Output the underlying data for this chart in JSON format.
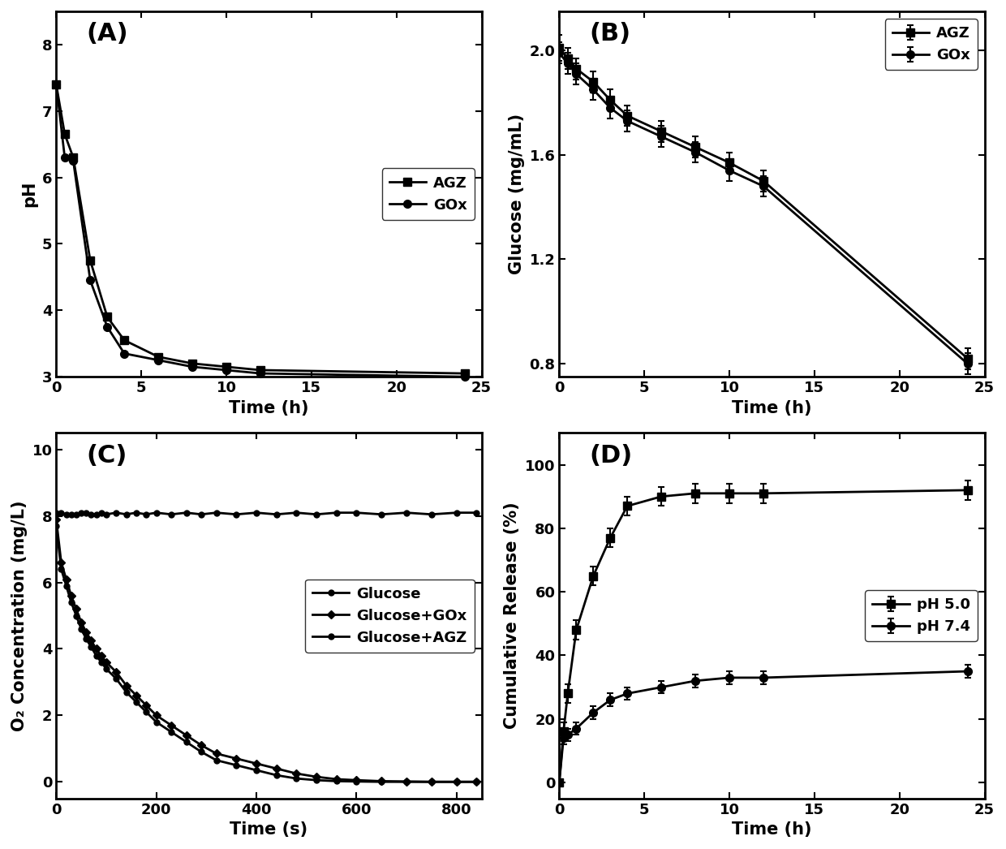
{
  "A": {
    "title": "(A)",
    "xlabel": "Time (h)",
    "ylabel": "pH",
    "xlim": [
      0,
      25
    ],
    "ylim": [
      3.0,
      8.5
    ],
    "yticks": [
      3,
      4,
      5,
      6,
      7,
      8
    ],
    "xticks": [
      0,
      5,
      10,
      15,
      20,
      25
    ],
    "AGZ_x": [
      0,
      0.5,
      1,
      2,
      3,
      4,
      6,
      8,
      10,
      12,
      24
    ],
    "AGZ_y": [
      7.4,
      6.65,
      6.3,
      4.75,
      3.9,
      3.55,
      3.3,
      3.2,
      3.15,
      3.1,
      3.05
    ],
    "GOx_x": [
      0,
      0.5,
      1,
      2,
      3,
      4,
      6,
      8,
      10,
      12,
      24
    ],
    "GOx_y": [
      7.4,
      6.3,
      6.25,
      4.45,
      3.75,
      3.35,
      3.25,
      3.15,
      3.1,
      3.05,
      3.0
    ]
  },
  "B": {
    "title": "(B)",
    "xlabel": "Time (h)",
    "ylabel": "Glucose (mg/mL)",
    "xlim": [
      0,
      25
    ],
    "ylim": [
      0.75,
      2.15
    ],
    "yticks": [
      0.8,
      1.2,
      1.6,
      2.0
    ],
    "xticks": [
      0,
      5,
      10,
      15,
      20,
      25
    ],
    "AGZ_x": [
      0,
      0.5,
      1,
      2,
      3,
      4,
      6,
      8,
      10,
      12,
      24
    ],
    "AGZ_y": [
      2.01,
      1.97,
      1.93,
      1.88,
      1.81,
      1.75,
      1.69,
      1.63,
      1.57,
      1.5,
      0.82
    ],
    "AGZ_err": [
      0.05,
      0.04,
      0.04,
      0.04,
      0.04,
      0.04,
      0.04,
      0.04,
      0.04,
      0.04,
      0.04
    ],
    "GOx_x": [
      0,
      0.5,
      1,
      2,
      3,
      4,
      6,
      8,
      10,
      12,
      24
    ],
    "GOx_y": [
      1.99,
      1.95,
      1.91,
      1.85,
      1.78,
      1.73,
      1.67,
      1.61,
      1.54,
      1.48,
      0.8
    ],
    "GOx_err": [
      0.04,
      0.04,
      0.04,
      0.04,
      0.04,
      0.04,
      0.04,
      0.04,
      0.04,
      0.04,
      0.04
    ]
  },
  "C": {
    "title": "(C)",
    "xlabel": "Time (s)",
    "ylabel": "O₂ Concentration (mg/L)",
    "xlim": [
      0,
      850
    ],
    "ylim": [
      -0.5,
      10.5
    ],
    "yticks": [
      0,
      2,
      4,
      6,
      8,
      10
    ],
    "xticks": [
      0,
      200,
      400,
      600,
      800
    ],
    "Glucose_x": [
      0,
      10,
      20,
      30,
      40,
      50,
      60,
      70,
      80,
      90,
      100,
      120,
      140,
      160,
      180,
      200,
      230,
      260,
      290,
      320,
      360,
      400,
      440,
      480,
      520,
      560,
      600,
      650,
      700,
      750,
      800,
      840
    ],
    "Glucose_y": [
      8.1,
      8.1,
      8.05,
      8.05,
      8.05,
      8.1,
      8.1,
      8.05,
      8.05,
      8.1,
      8.05,
      8.1,
      8.05,
      8.1,
      8.05,
      8.1,
      8.05,
      8.1,
      8.05,
      8.1,
      8.05,
      8.1,
      8.05,
      8.1,
      8.05,
      8.1,
      8.1,
      8.05,
      8.1,
      8.05,
      8.1,
      8.1
    ],
    "GOx_x": [
      0,
      10,
      20,
      30,
      40,
      50,
      60,
      70,
      80,
      90,
      100,
      120,
      140,
      160,
      180,
      200,
      230,
      260,
      290,
      320,
      360,
      400,
      440,
      480,
      520,
      560,
      600,
      650,
      700,
      750,
      800,
      840
    ],
    "GOx_y": [
      7.9,
      6.6,
      6.1,
      5.6,
      5.2,
      4.8,
      4.5,
      4.25,
      4.0,
      3.8,
      3.6,
      3.3,
      2.9,
      2.6,
      2.3,
      2.0,
      1.7,
      1.4,
      1.1,
      0.85,
      0.7,
      0.55,
      0.4,
      0.25,
      0.15,
      0.08,
      0.05,
      0.02,
      0.01,
      0.0,
      0.0,
      0.0
    ],
    "AGZ_x": [
      0,
      10,
      20,
      30,
      40,
      50,
      60,
      70,
      80,
      90,
      100,
      120,
      140,
      160,
      180,
      200,
      230,
      260,
      290,
      320,
      360,
      400,
      440,
      480,
      520,
      560,
      600,
      650,
      700,
      750,
      800,
      840
    ],
    "AGZ_y": [
      7.7,
      6.4,
      5.9,
      5.4,
      5.0,
      4.6,
      4.3,
      4.05,
      3.8,
      3.6,
      3.4,
      3.1,
      2.7,
      2.4,
      2.1,
      1.8,
      1.5,
      1.2,
      0.9,
      0.65,
      0.5,
      0.35,
      0.2,
      0.1,
      0.05,
      0.02,
      0.01,
      0.0,
      0.0,
      0.0,
      0.0,
      0.0
    ]
  },
  "D": {
    "title": "(D)",
    "xlabel": "Time (h)",
    "ylabel": "Cumulative Release (%)",
    "xlim": [
      0,
      25
    ],
    "ylim": [
      -5,
      110
    ],
    "yticks": [
      0,
      20,
      40,
      60,
      80,
      100
    ],
    "xticks": [
      0,
      5,
      10,
      15,
      20,
      25
    ],
    "pH50_x": [
      0,
      0.25,
      0.5,
      1,
      2,
      3,
      4,
      6,
      8,
      10,
      12,
      24
    ],
    "pH50_y": [
      0,
      16,
      28,
      48,
      65,
      77,
      87,
      90,
      91,
      91,
      91,
      92
    ],
    "pH50_err": [
      0,
      3,
      3,
      3,
      3,
      3,
      3,
      3,
      3,
      3,
      3,
      3
    ],
    "pH74_x": [
      0,
      0.25,
      0.5,
      1,
      2,
      3,
      4,
      6,
      8,
      10,
      12,
      24
    ],
    "pH74_y": [
      0,
      14,
      15,
      17,
      22,
      26,
      28,
      30,
      32,
      33,
      33,
      35
    ],
    "pH74_err": [
      0,
      2,
      2,
      2,
      2,
      2,
      2,
      2,
      2,
      2,
      2,
      2
    ]
  }
}
